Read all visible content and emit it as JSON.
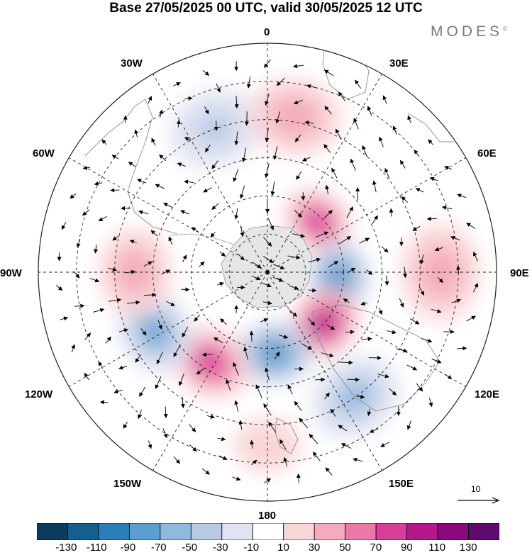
{
  "title": "Base 27/05/2025 00 UTC, valid 30/05/2025 12 UTC",
  "brand": "MODES",
  "brand_mark": "©",
  "longitude_labels": {
    "lon_0": "0",
    "lon_30e": "30E",
    "lon_60e": "60E",
    "lon_90e": "90E",
    "lon_120e": "120E",
    "lon_150e": "150E",
    "lon_180": "180",
    "lon_150w": "150W",
    "lon_120w": "120W",
    "lon_90w": "90W",
    "lon_60w": "60W",
    "lon_30w": "30W"
  },
  "reference_vector": "10",
  "colorbar": {
    "colors": [
      "#0d3b5e",
      "#135f92",
      "#2b7fb8",
      "#5a9fcf",
      "#8fb9de",
      "#b8c9e4",
      "#dfe3f2",
      "#ffffff",
      "#f9d6d8",
      "#f4abbd",
      "#ec78a8",
      "#d83f9a",
      "#b3198a",
      "#8a0a7c",
      "#5e0a6e"
    ],
    "labels": [
      "-130",
      "-110",
      "-90",
      "-70",
      "-50",
      "-30",
      "-10",
      "10",
      "30",
      "50",
      "70",
      "90",
      "110",
      "130"
    ]
  },
  "anomaly_centers": [
    {
      "sign": "positive",
      "value": 90,
      "lon": 45,
      "lat": -62
    },
    {
      "sign": "negative",
      "value": -90,
      "lon": 95,
      "lat": -62
    },
    {
      "sign": "positive",
      "value": 110,
      "lon": 132,
      "lat": -60
    },
    {
      "sign": "negative",
      "value": -90,
      "lon": 175,
      "lat": -58
    },
    {
      "sign": "positive",
      "value": 90,
      "lon": -148,
      "lat": -48
    },
    {
      "sign": "negative",
      "value": -70,
      "lon": -118,
      "lat": -40
    },
    {
      "sign": "positive",
      "value": 50,
      "lon": -90,
      "lat": -38
    },
    {
      "sign": "negative",
      "value": -30,
      "lon": -20,
      "lat": -30
    },
    {
      "sign": "positive",
      "value": 50,
      "lon": 10,
      "lat": -28
    },
    {
      "sign": "positive",
      "value": 50,
      "lon": 90,
      "lat": -22
    },
    {
      "sign": "negative",
      "value": -50,
      "lon": 145,
      "lat": -30
    },
    {
      "sign": "positive",
      "value": 30,
      "lon": 180,
      "lat": -22
    }
  ]
}
